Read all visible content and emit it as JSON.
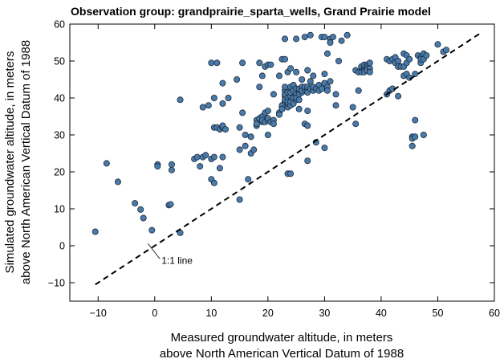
{
  "chart_data": {
    "type": "scatter",
    "title": "Observation group: grandprairie_sparta_wells, Grand Prairie model",
    "xlabel_lines": [
      "Measured groundwater altitude, in meters",
      "above North American Vertical Datum of 1988"
    ],
    "ylabel_lines": [
      "Simulated groundwater altitude, in meters",
      "above North American Vertical Datum of 1988"
    ],
    "xlim": [
      -15,
      60
    ],
    "ylim": [
      -15,
      60
    ],
    "xticks": [
      -10,
      0,
      10,
      20,
      30,
      40,
      50,
      60
    ],
    "yticks": [
      -10,
      0,
      10,
      20,
      30,
      40,
      50,
      60
    ],
    "xtick_labels": [
      "−10",
      "0",
      "10",
      "20",
      "30",
      "40",
      "50",
      "60"
    ],
    "ytick_labels": [
      "−10",
      "0",
      "10",
      "20",
      "30",
      "40",
      "50",
      "60"
    ],
    "point_color": "#4a7aaa",
    "point_edge": "#1a2a3a",
    "reference_line": {
      "label": "1:1 line",
      "x": [
        -10.5,
        57.5
      ],
      "y": [
        -10.5,
        57.5
      ],
      "style": "dashed"
    },
    "annotation": {
      "text": "1:1 line",
      "x": 1.2,
      "y": -4,
      "arrow_to": [
        -1.2,
        0.6
      ]
    },
    "points": [
      [
        -10.5,
        3.8
      ],
      [
        -8.5,
        22.3
      ],
      [
        -6.5,
        17.3
      ],
      [
        -3.5,
        11.5
      ],
      [
        -2.5,
        9.8
      ],
      [
        -2,
        7.5
      ],
      [
        -0.5,
        4.2
      ],
      [
        0.5,
        22
      ],
      [
        0.5,
        21.5
      ],
      [
        2.5,
        11
      ],
      [
        2.8,
        11.2
      ],
      [
        3,
        20.5
      ],
      [
        3,
        22
      ],
      [
        4.5,
        3.5
      ],
      [
        4.5,
        39.5
      ],
      [
        7,
        23.5
      ],
      [
        7.5,
        24
      ],
      [
        8,
        21.5
      ],
      [
        8.5,
        37.5
      ],
      [
        8.5,
        24
      ],
      [
        9,
        24.5
      ],
      [
        9.5,
        38
      ],
      [
        10,
        23.5
      ],
      [
        10,
        49.5
      ],
      [
        10,
        18
      ],
      [
        10.5,
        40
      ],
      [
        10.5,
        17
      ],
      [
        10.5,
        32
      ],
      [
        10.5,
        24
      ],
      [
        11,
        32
      ],
      [
        11,
        49.5
      ],
      [
        11.5,
        31.5
      ],
      [
        11.5,
        21
      ],
      [
        12,
        44
      ],
      [
        12,
        32
      ],
      [
        12,
        32.5
      ],
      [
        12,
        24
      ],
      [
        12,
        38.5
      ],
      [
        12.5,
        31.5
      ],
      [
        13,
        40
      ],
      [
        14.5,
        45
      ],
      [
        15,
        26
      ],
      [
        15,
        12.5
      ],
      [
        15,
        32
      ],
      [
        15.5,
        49.5
      ],
      [
        15.5,
        36
      ],
      [
        16,
        27
      ],
      [
        16,
        30
      ],
      [
        16.5,
        18
      ],
      [
        17,
        25
      ],
      [
        17,
        29.5
      ],
      [
        17.5,
        26
      ],
      [
        18,
        34
      ],
      [
        18,
        32.5
      ],
      [
        18,
        33
      ],
      [
        18.5,
        34.5
      ],
      [
        18.5,
        49.5
      ],
      [
        18.5,
        43
      ],
      [
        19,
        33.5
      ],
      [
        19,
        46
      ],
      [
        19,
        35
      ],
      [
        19,
        34
      ],
      [
        19.5,
        36
      ],
      [
        19.5,
        33.5
      ],
      [
        19.5,
        48.5
      ],
      [
        20,
        34
      ],
      [
        20,
        36.5
      ],
      [
        20,
        34.5
      ],
      [
        20,
        49
      ],
      [
        20,
        30
      ],
      [
        20.5,
        49
      ],
      [
        20.5,
        33.5
      ],
      [
        21,
        34
      ],
      [
        21,
        33
      ],
      [
        21,
        41
      ],
      [
        22,
        46
      ],
      [
        22,
        36
      ],
      [
        22,
        35.5
      ],
      [
        22.5,
        37.5
      ],
      [
        22.5,
        50.5
      ],
      [
        22.5,
        38
      ],
      [
        22.5,
        37
      ],
      [
        23,
        39
      ],
      [
        23,
        40.5
      ],
      [
        23,
        42
      ],
      [
        23,
        39.5
      ],
      [
        23,
        43
      ],
      [
        23,
        50.5
      ],
      [
        23,
        41
      ],
      [
        23,
        56
      ],
      [
        23.5,
        40
      ],
      [
        23.5,
        37.5
      ],
      [
        23.5,
        38.5
      ],
      [
        23.5,
        39
      ],
      [
        23.5,
        41.5
      ],
      [
        23.5,
        47
      ],
      [
        23.5,
        19.5
      ],
      [
        24,
        48
      ],
      [
        24,
        40.5
      ],
      [
        24,
        41.5
      ],
      [
        24,
        43
      ],
      [
        24,
        19.5
      ],
      [
        24,
        38
      ],
      [
        24,
        39
      ],
      [
        24.5,
        40
      ],
      [
        24.5,
        42
      ],
      [
        24.5,
        43.5
      ],
      [
        24.5,
        38.5
      ],
      [
        25,
        41
      ],
      [
        25,
        47
      ],
      [
        25,
        42.5
      ],
      [
        25,
        39.5
      ],
      [
        25,
        40
      ],
      [
        25,
        56
      ],
      [
        25.5,
        42
      ],
      [
        25.5,
        42.5
      ],
      [
        25.5,
        41
      ],
      [
        25.5,
        37
      ],
      [
        25.5,
        39.5
      ],
      [
        26,
        42.5
      ],
      [
        26,
        43
      ],
      [
        26,
        41.5
      ],
      [
        26,
        45
      ],
      [
        26,
        42
      ],
      [
        26.5,
        42.5
      ],
      [
        26.5,
        43
      ],
      [
        26.5,
        56.5
      ],
      [
        26.5,
        33
      ],
      [
        27,
        42.5
      ],
      [
        27,
        32.5
      ],
      [
        27,
        36.5
      ],
      [
        27,
        43
      ],
      [
        27,
        23
      ],
      [
        27,
        47.5
      ],
      [
        27,
        41.5
      ],
      [
        27.5,
        57
      ],
      [
        27.5,
        42.5
      ],
      [
        27.5,
        44.5
      ],
      [
        28,
        42
      ],
      [
        28,
        46
      ],
      [
        28,
        43
      ],
      [
        28.5,
        28
      ],
      [
        28.5,
        42.5
      ],
      [
        29,
        43.5
      ],
      [
        29,
        42
      ],
      [
        29.5,
        42.5
      ],
      [
        29.5,
        56.5
      ],
      [
        30,
        44
      ],
      [
        30,
        46.5
      ],
      [
        30,
        56.5
      ],
      [
        30,
        26.5
      ],
      [
        30.5,
        43
      ],
      [
        30.5,
        52
      ],
      [
        30.5,
        42
      ],
      [
        31,
        56
      ],
      [
        31,
        44.5
      ],
      [
        31,
        55
      ],
      [
        31.5,
        56.5
      ],
      [
        32,
        38
      ],
      [
        32,
        41
      ],
      [
        32.5,
        50
      ],
      [
        33,
        55.5
      ],
      [
        34,
        57
      ],
      [
        35,
        37.5
      ],
      [
        35.5,
        47.5
      ],
      [
        35.5,
        33
      ],
      [
        36,
        47
      ],
      [
        36,
        42
      ],
      [
        36.5,
        48.5
      ],
      [
        36.5,
        47
      ],
      [
        37,
        48
      ],
      [
        37,
        49
      ],
      [
        37,
        47.5
      ],
      [
        37,
        47
      ],
      [
        37.5,
        49
      ],
      [
        37.5,
        48.5
      ],
      [
        37.5,
        48
      ],
      [
        37.5,
        47.5
      ],
      [
        38,
        49.5
      ],
      [
        38,
        48
      ],
      [
        38,
        47
      ],
      [
        41,
        50.5
      ],
      [
        41,
        41
      ],
      [
        41.5,
        42
      ],
      [
        41.5,
        50
      ],
      [
        42,
        42.5
      ],
      [
        42,
        50.5
      ],
      [
        42.5,
        51
      ],
      [
        42.5,
        49.5
      ],
      [
        43,
        50
      ],
      [
        43,
        48.5
      ],
      [
        43,
        40.5
      ],
      [
        43.5,
        48.5
      ],
      [
        44,
        48.5
      ],
      [
        44,
        52
      ],
      [
        44,
        46
      ],
      [
        44.5,
        46.5
      ],
      [
        44.5,
        49.5
      ],
      [
        44.5,
        51.5
      ],
      [
        45,
        45.5
      ],
      [
        45,
        50.5
      ],
      [
        45.5,
        29.5
      ],
      [
        45.5,
        29
      ],
      [
        45.5,
        27
      ],
      [
        46,
        34
      ],
      [
        46,
        46.5
      ],
      [
        46,
        29.5
      ],
      [
        46.5,
        51.5
      ],
      [
        47,
        49.5
      ],
      [
        47,
        51
      ],
      [
        47,
        50.5
      ],
      [
        47.5,
        52
      ],
      [
        47.5,
        30
      ],
      [
        47.5,
        50.5
      ],
      [
        48,
        51.5
      ],
      [
        50,
        54.5
      ],
      [
        51,
        52.5
      ],
      [
        51.5,
        53
      ]
    ]
  }
}
